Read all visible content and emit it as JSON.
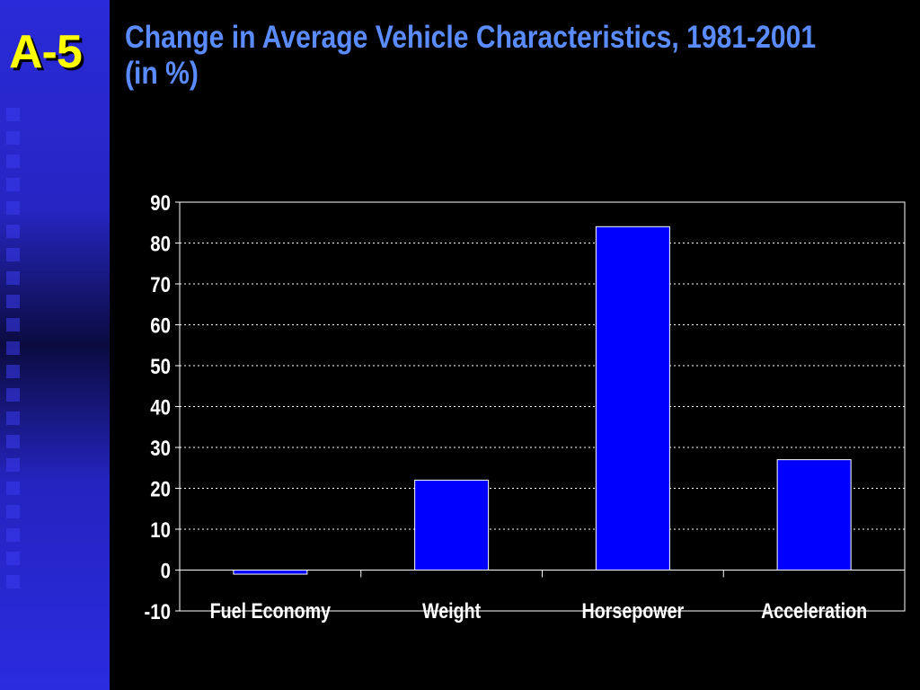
{
  "slide": {
    "number": "A-5",
    "title_line1": "Change in Average Vehicle Characteristics, 1981-2001",
    "title_line2": "(in %)"
  },
  "colors": {
    "background": "#000000",
    "bar_fill": "#0000ff",
    "bar_stroke": "#ffffff",
    "title": "#5b8cff",
    "slide_number": "#ffff00",
    "sidebar": "#2a2ad8"
  },
  "chart_data": {
    "type": "bar",
    "title": "",
    "xlabel": "",
    "ylabel": "",
    "categories": [
      "Fuel Economy",
      "Weight",
      "Horsepower",
      "Acceleration"
    ],
    "values": [
      -1,
      22,
      84,
      27
    ],
    "ylim": [
      -10,
      90
    ],
    "yticks": [
      -10,
      0,
      10,
      20,
      30,
      40,
      50,
      60,
      70,
      80,
      90
    ],
    "grid": true,
    "legend": "none"
  }
}
